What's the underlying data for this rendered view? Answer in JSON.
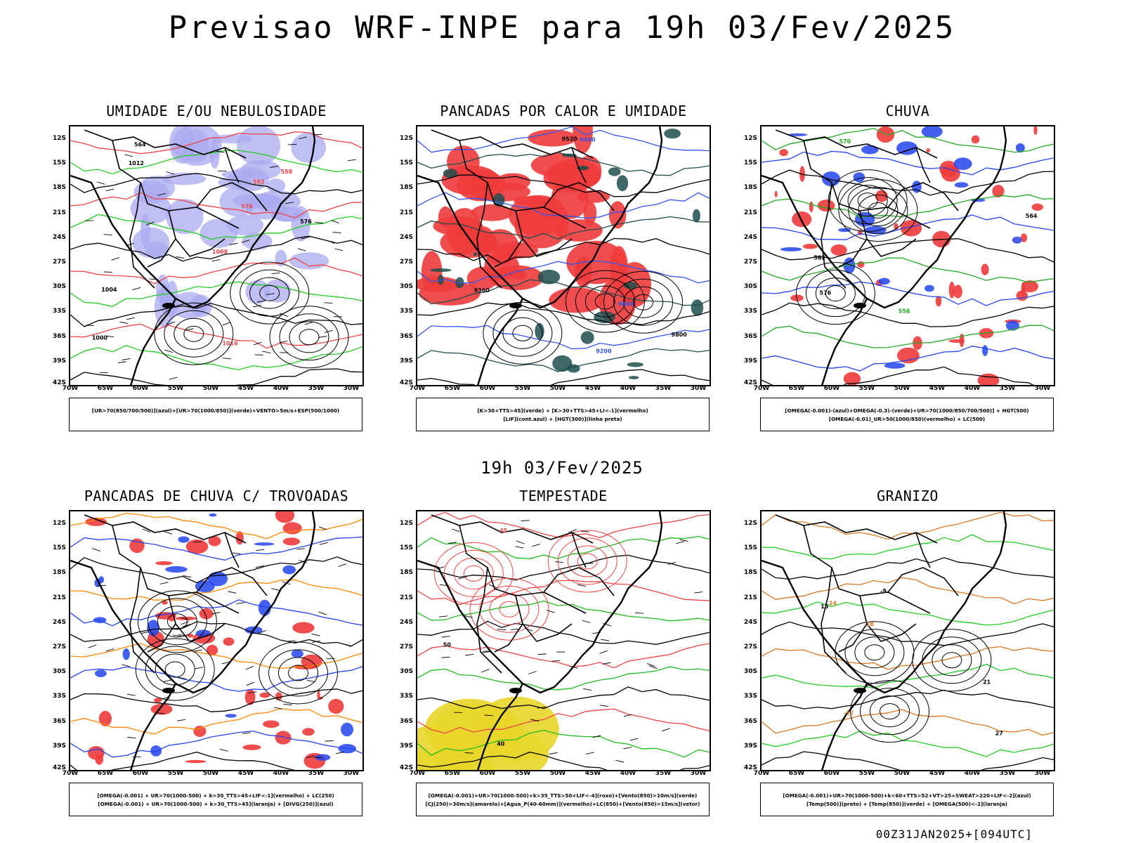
{
  "title": "Previsao WRF-INPE  para 19h 03/Fev/2025",
  "mid_title": "19h 03/Fev/2025",
  "footer": "00Z31JAN2025+[094UTC]",
  "chart_data": [
    {
      "type": "heatmap",
      "title": "UMIDADE E/OU NEBULOSIDADE",
      "legend": [
        "[UR>70(850/700/500)](azul)+[UR>70(1000/850)](verde)+VENTO>5m/s+ESP(500/1000)"
      ],
      "contour_labels": [
        "1004",
        "1008",
        "1012",
        "1016",
        "1000",
        "582",
        "576",
        "570",
        "564",
        "558"
      ],
      "colors": {
        "fill": "#aaaaf0",
        "contour1": "#22cc22",
        "contour2": "#ee4444"
      }
    },
    {
      "type": "heatmap",
      "title": "PANCADAS POR CALOR E UMIDADE",
      "legend": [
        "[K>30+TTS>45](verde) + [K>30+TTS>45+LI<-1](vermelho)",
        "[LIF](cont.azul) + [HGT(300)](linha preta)"
      ],
      "contour_labels": [
        "9800",
        "9600",
        "9520",
        "9440",
        "9360",
        "9200"
      ],
      "colors": {
        "fill": "#ee3b3b",
        "contour1": "#1f4d4d",
        "contour2": "#3355ee"
      }
    },
    {
      "type": "heatmap",
      "title": "CHUVA",
      "legend": [
        "[OMEGA(-0.001)-(azul)+OMEGA(-0.3)-(verde)+UR>70(1000/850/700/500)] + HGT(500)",
        "[OMEGA(-0.01)_UR>50(1000/850)(vermelho) + LC(500)"
      ],
      "contour_labels": [
        "576",
        "570",
        "564",
        "558",
        "582"
      ],
      "colors": {
        "fill": "#ee3b3b",
        "contour1": "#2244ee",
        "contour2": "#22aa22"
      }
    },
    {
      "type": "heatmap",
      "title": "PANCADAS DE CHUVA C/ TROVOADAS",
      "legend": [
        "[OMEGA(-0.001) + UR>70(1000-500) + k>30_TTS>45+LIF<-1](vermelho) + LC(250)",
        "[OMEGA(-0.001) + UR>70(1000-500) + k>30_TTS>45](laranja) + [DIVG(250)](azul)"
      ],
      "contour_labels": [],
      "colors": {
        "fill": "#ee3b3b",
        "contour1": "#2244ee",
        "contour2": "#ff8800"
      }
    },
    {
      "type": "heatmap",
      "title": "TEMPESTADE",
      "legend": [
        "[OMEGA(-0.001)+UR>70(1000-500)+k>35_TTS>50+LIF<-4](roxo)+[Vento(850)>10m/s](verde)",
        "[CJ(250)>30m/s](amarelo)+[Agua_P(40-60mm)](vermelho)+LC(850)+[Vento(850)>15m/s](vetor)"
      ],
      "contour_labels": [
        "50",
        "45",
        "40"
      ],
      "colors": {
        "fill": "#e8d62a",
        "contour1": "#22bb22",
        "contour2": "#ee4444"
      }
    },
    {
      "type": "heatmap",
      "title": "GRANIZO",
      "legend": [
        "[OMEGA(-0.001)+UR>70(1000-500)+k<60+TTS>52+VT>25+SWEAT>220+LIF<-2](azul)",
        "[Temp(500)](preto) + [Temp(850)](verde) + [OMEGA(500)<-2](laranja)"
      ],
      "contour_labels": [
        "15",
        "18",
        "21",
        "24",
        "27",
        "-12",
        "-9"
      ],
      "colors": {
        "fill": "#ffffff",
        "contour1": "#22cc22",
        "contour2": "#dd7722"
      }
    }
  ],
  "lat_ticks": [
    "12S",
    "15S",
    "18S",
    "21S",
    "24S",
    "27S",
    "30S",
    "33S",
    "36S",
    "39S",
    "42S"
  ],
  "lon_ticks": [
    "70W",
    "65W",
    "60W",
    "55W",
    "50W",
    "45W",
    "40W",
    "35W",
    "30W"
  ]
}
